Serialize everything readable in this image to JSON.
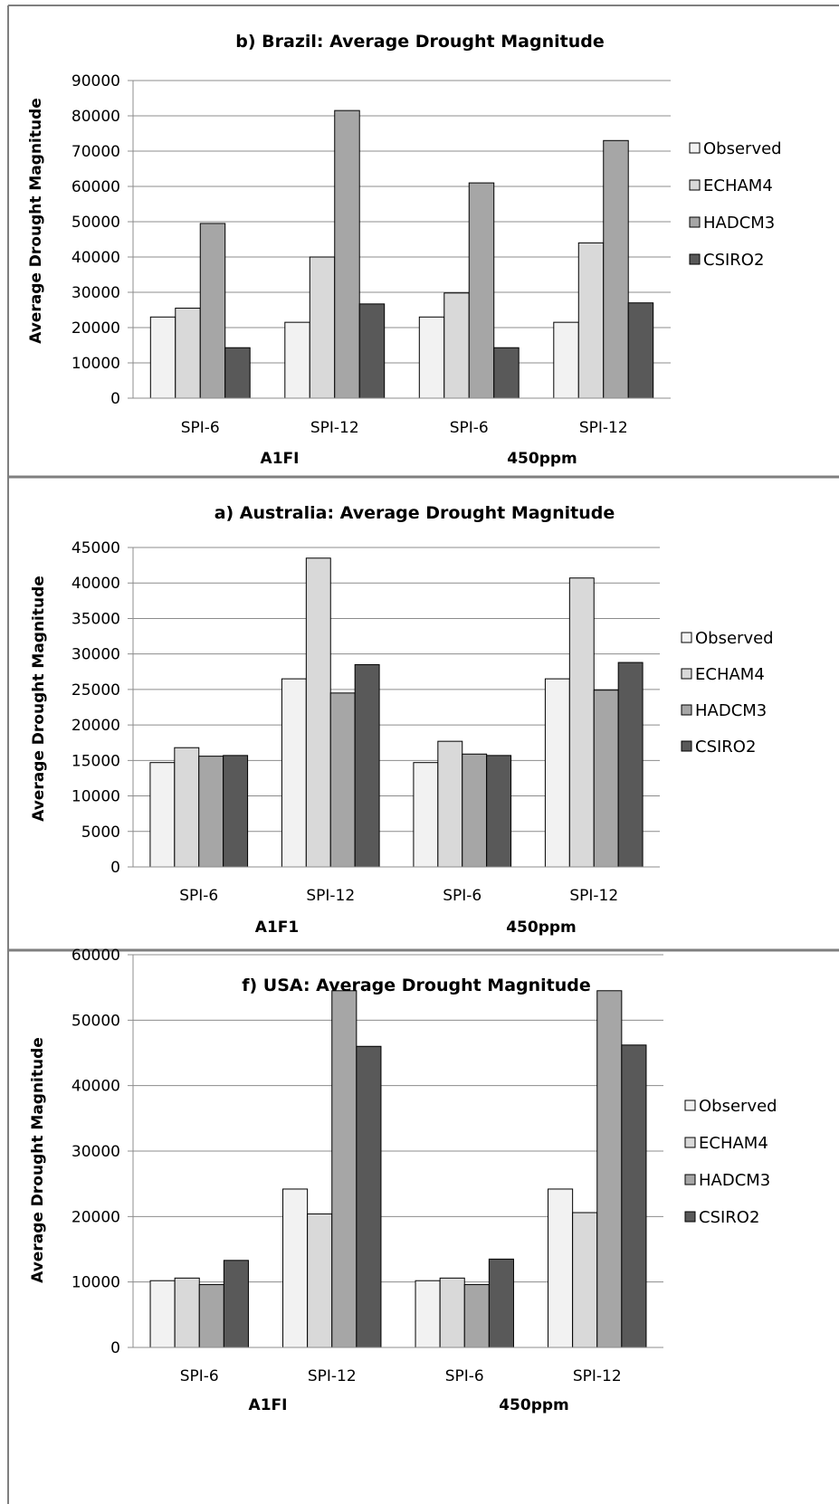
{
  "chart_data": [
    {
      "type": "bar",
      "title": "b) Brazil: Average Drought Magnitude",
      "ylabel": "Average Drought Magnitude",
      "xlabel": "",
      "ylim": [
        0,
        90000
      ],
      "yticks": [
        0,
        10000,
        20000,
        30000,
        40000,
        50000,
        60000,
        70000,
        80000,
        90000
      ],
      "categories": [
        "SPI-6",
        "SPI-12",
        "SPI-6",
        "SPI-12"
      ],
      "groups": [
        "A1FI",
        "450ppm"
      ],
      "grid": true,
      "legend": "right",
      "series": [
        {
          "name": "Observed",
          "values": [
            23000,
            21500,
            23000,
            21500
          ]
        },
        {
          "name": "ECHAM4",
          "values": [
            25500,
            40000,
            29800,
            44000
          ]
        },
        {
          "name": "HADCM3",
          "values": [
            49500,
            81500,
            61000,
            73000
          ]
        },
        {
          "name": "CSIRO2",
          "values": [
            14300,
            26700,
            14300,
            27000
          ]
        }
      ]
    },
    {
      "type": "bar",
      "title": "a) Australia: Average Drought Magnitude",
      "ylabel": "Average Drought Magnitude",
      "xlabel": "",
      "ylim": [
        0,
        45000
      ],
      "yticks": [
        0,
        5000,
        10000,
        15000,
        20000,
        25000,
        30000,
        35000,
        40000,
        45000
      ],
      "categories": [
        "SPI-6",
        "SPI-12",
        "SPI-6",
        "SPI-12"
      ],
      "groups": [
        "A1F1",
        "450ppm"
      ],
      "grid": true,
      "legend": "right",
      "series": [
        {
          "name": "Observed",
          "values": [
            14700,
            26500,
            14700,
            26500
          ]
        },
        {
          "name": "ECHAM4",
          "values": [
            16800,
            43500,
            17700,
            40700
          ]
        },
        {
          "name": "HADCM3",
          "values": [
            15600,
            24500,
            15900,
            24900
          ]
        },
        {
          "name": "CSIRO2",
          "values": [
            15700,
            28500,
            15700,
            28800
          ]
        }
      ]
    },
    {
      "type": "bar",
      "title": "f) USA: Average Drought Magnitude",
      "ylabel": "Average Drought Magnitude",
      "xlabel": "",
      "ylim": [
        0,
        60000
      ],
      "yticks": [
        0,
        10000,
        20000,
        30000,
        40000,
        50000,
        60000
      ],
      "categories": [
        "SPI-6",
        "SPI-12",
        "SPI-6",
        "SPI-12"
      ],
      "groups": [
        "A1FI",
        "450ppm"
      ],
      "grid": true,
      "legend": "right",
      "series": [
        {
          "name": "Observed",
          "values": [
            10200,
            24200,
            10200,
            24200
          ]
        },
        {
          "name": "ECHAM4",
          "values": [
            10600,
            20400,
            10600,
            20600
          ]
        },
        {
          "name": "HADCM3",
          "values": [
            9600,
            54500,
            9600,
            54500
          ]
        },
        {
          "name": "CSIRO2",
          "values": [
            13300,
            46000,
            13500,
            46200
          ]
        }
      ]
    }
  ],
  "colors": {
    "series": [
      "#f2f2f2",
      "#d9d9d9",
      "#a6a6a6",
      "#595959"
    ],
    "panel_border": "#7f7f7f",
    "grid": "#8c8c8c",
    "bar_stroke": "#000000"
  }
}
